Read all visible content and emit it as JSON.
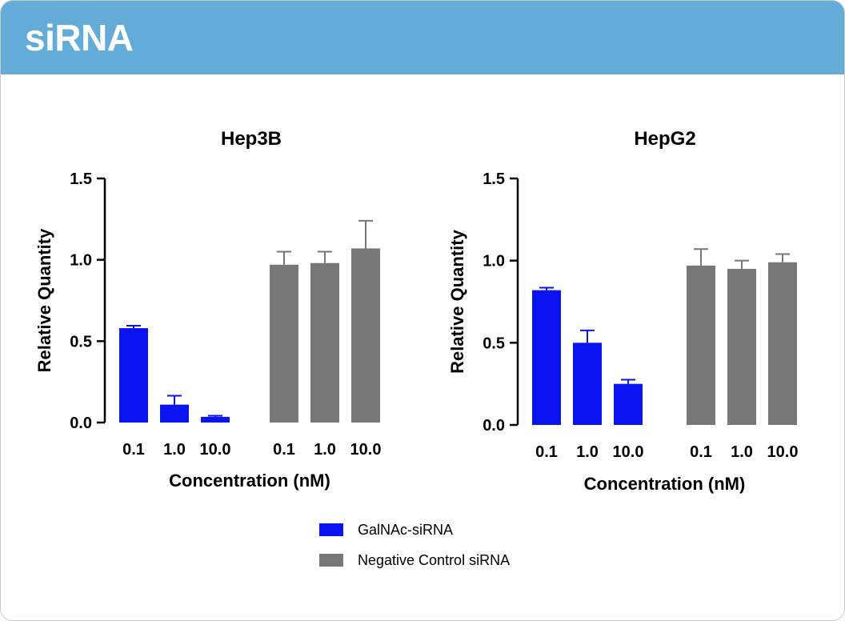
{
  "header": {
    "title": "siRNA"
  },
  "colors": {
    "header_bg": "#64acd8",
    "galnac": "#0a14f0",
    "control": "#777777"
  },
  "chart_data": [
    {
      "type": "bar",
      "title": "Hep3B",
      "xlabel": "Concentration (nM)",
      "ylabel": "Relative Quantity",
      "ylim": [
        0,
        1.5
      ],
      "yticks": [
        "0.0",
        "0.5",
        "1.0",
        "1.5"
      ],
      "categories": [
        "0.1",
        "1.0",
        "10.0"
      ],
      "series": [
        {
          "name": "GalNAc-siRNA",
          "values": [
            0.58,
            0.11,
            0.035
          ],
          "errors": [
            0.015,
            0.055,
            0.007
          ],
          "color": "#0a14f0"
        },
        {
          "name": "Negative Control siRNA",
          "values": [
            0.97,
            0.98,
            1.07
          ],
          "errors": [
            0.08,
            0.07,
            0.17
          ],
          "color": "#777777"
        }
      ],
      "grid": false
    },
    {
      "type": "bar",
      "title": "HepG2",
      "xlabel": "Concentration (nM)",
      "ylabel": "Relative Quantity",
      "ylim": [
        0,
        1.5
      ],
      "yticks": [
        "0.0",
        "0.5",
        "1.0",
        "1.5"
      ],
      "categories": [
        "0.1",
        "1.0",
        "10.0"
      ],
      "series": [
        {
          "name": "GalNAc-siRNA",
          "values": [
            0.82,
            0.5,
            0.25
          ],
          "errors": [
            0.015,
            0.075,
            0.025
          ],
          "color": "#0a14f0"
        },
        {
          "name": "Negative Control siRNA",
          "values": [
            0.97,
            0.95,
            0.99
          ],
          "errors": [
            0.1,
            0.05,
            0.05
          ],
          "color": "#777777"
        }
      ],
      "grid": false
    }
  ],
  "legend": {
    "placement": "bottom-center",
    "items": [
      {
        "label": "GalNAc-siRNA",
        "color": "#0a14f0"
      },
      {
        "label": "Negative Control siRNA",
        "color": "#777777"
      }
    ]
  }
}
